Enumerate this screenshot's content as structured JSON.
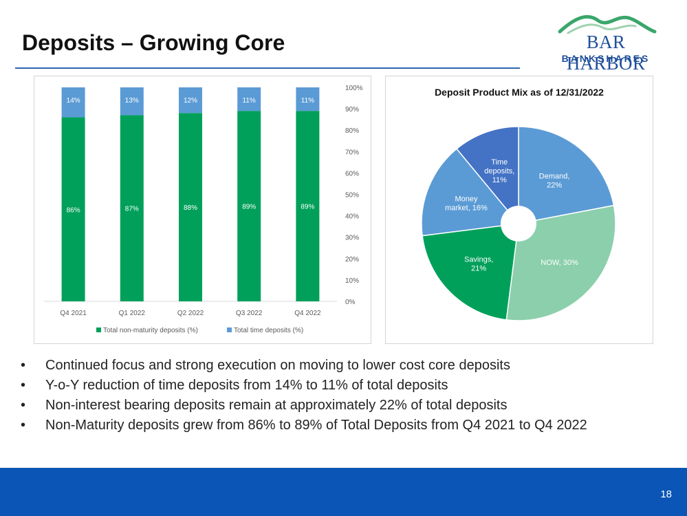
{
  "slide": {
    "title": "Deposits – Growing Core",
    "page_number": "18"
  },
  "logo": {
    "line1": "BAR HARBOR",
    "line2": "BANKSHARES"
  },
  "colors": {
    "green": "#00a05a",
    "blue": "#5b9bd5",
    "footer": "#0a55b5",
    "pie_demand": "#5b9bd5",
    "pie_now": "#8ccfac",
    "pie_savings": "#00a05a",
    "pie_money": "#5b9bd5",
    "pie_time": "#4472c4"
  },
  "bullets": [
    "Continued focus and strong execution on moving to lower cost core deposits",
    "Y-o-Y reduction of time deposits from 14% to 11% of total deposits",
    "Non-interest bearing deposits remain at approximately 22% of total deposits",
    "Non-Maturity deposits grew from 86% to 89% of Total Deposits from Q4 2021 to Q4 2022"
  ],
  "chart_data": [
    {
      "type": "bar",
      "stacked": true,
      "categories": [
        "Q4 2021",
        "Q1 2022",
        "Q2 2022",
        "Q3 2022",
        "Q4 2022"
      ],
      "series": [
        {
          "name": "Total non-maturity deposits (%)",
          "values": [
            86,
            87,
            88,
            89,
            89
          ],
          "labels": [
            "86%",
            "87%",
            "88%",
            "89%",
            "89%"
          ]
        },
        {
          "name": "Total time deposits (%)",
          "values": [
            14,
            13,
            12,
            11,
            11
          ],
          "labels": [
            "14%",
            "13%",
            "12%",
            "11%",
            "11%"
          ]
        }
      ],
      "ylim": [
        0,
        100
      ],
      "yticks": [
        "0%",
        "10%",
        "20%",
        "30%",
        "40%",
        "50%",
        "60%",
        "70%",
        "80%",
        "90%",
        "100%"
      ],
      "yaxis_position": "right",
      "legend_position": "bottom",
      "title": "",
      "xlabel": "",
      "ylabel": ""
    },
    {
      "type": "pie",
      "donut": true,
      "title": "Deposit Product Mix as of 12/31/2022",
      "slices": [
        {
          "name": "Demand",
          "value": 22,
          "label_lines": [
            "Demand,",
            "22%"
          ]
        },
        {
          "name": "NOW",
          "value": 30,
          "label_lines": [
            "NOW, 30%"
          ]
        },
        {
          "name": "Savings",
          "value": 21,
          "label_lines": [
            "Savings,",
            "21%"
          ]
        },
        {
          "name": "Money market",
          "value": 16,
          "label_lines": [
            "Money",
            "market, 16%"
          ]
        },
        {
          "name": "Time deposits",
          "value": 11,
          "label_lines": [
            "Time",
            "deposits,",
            "11%"
          ]
        }
      ]
    }
  ]
}
